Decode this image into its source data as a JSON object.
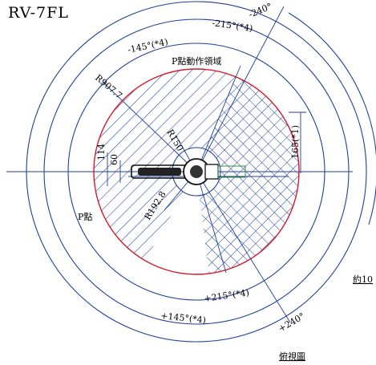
{
  "model": "RV-7FL",
  "labels": {
    "p_area": "P點動作領域",
    "p_point": "P點",
    "top_view": "俯視圖",
    "approx": "約10",
    "r907": "R907.7",
    "r150": "R150",
    "r192": "R192.8",
    "d114": "114",
    "d60": "60",
    "d165": "165(*1)",
    "neg145": "-145°(*4)",
    "neg215": "-215°(*4)",
    "neg240": "-240°",
    "pos215": "+215°(*4)",
    "pos145": "+145°(*4)",
    "pos240": "+240°"
  },
  "colors": {
    "outline": "#1f3f9a",
    "envelope": "#d21a2a",
    "wrist": "#2e8b3c",
    "ink": "#111111"
  },
  "angles_deg": {
    "j1_range": [
      -240,
      240
    ],
    "limit_a": [
      -145,
      145
    ],
    "limit_b": [
      -215,
      215
    ]
  }
}
